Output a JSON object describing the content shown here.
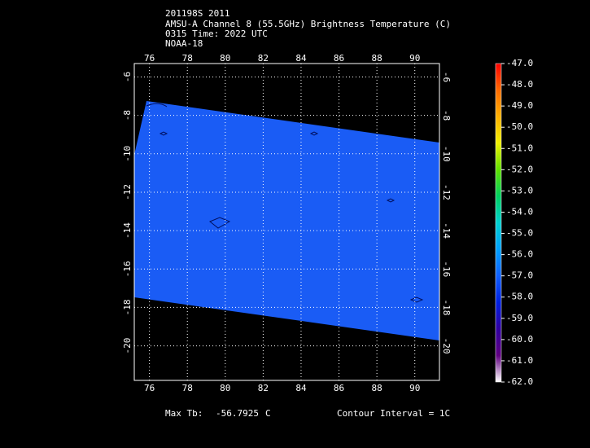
{
  "header": {
    "lines": [
      "201198S 2011",
      "AMSU-A Channel 8 (55.5GHz) Brightness Temperature (C)",
      "0315 Time: 2022 UTC",
      "NOAA-18"
    ]
  },
  "chart_data": {
    "type": "map",
    "xlim": [
      75.2,
      91.3
    ],
    "xticks": [
      76,
      78,
      80,
      82,
      84,
      86,
      88,
      90
    ],
    "ylim": [
      -21.8,
      -5.3
    ],
    "yticks": [
      -6,
      -8,
      -10,
      -12,
      -14,
      -16,
      -18,
      -20
    ],
    "grid": true,
    "colorbar": {
      "lim": [
        -62,
        -47
      ],
      "ticks": [
        {
          "value": -47,
          "label": "-47.0"
        },
        {
          "value": -48,
          "label": "-48.0"
        },
        {
          "value": -49,
          "label": "-49.0"
        },
        {
          "value": -50,
          "label": "-50.0"
        },
        {
          "value": -51,
          "label": "-51.0"
        },
        {
          "value": -52,
          "label": "-52.0"
        },
        {
          "value": -53,
          "label": "-53.0"
        },
        {
          "value": -54,
          "label": "-54.0"
        },
        {
          "value": -55,
          "label": "-55.0"
        },
        {
          "value": -56,
          "label": "-56.0"
        },
        {
          "value": -57,
          "label": "-57.0"
        },
        {
          "value": -58,
          "label": "-58.0"
        },
        {
          "value": -59,
          "label": "-59.0"
        },
        {
          "value": -60,
          "label": "-60.0"
        },
        {
          "value": -61,
          "label": "-61.0"
        },
        {
          "value": -62,
          "label": "-62.0"
        }
      ],
      "colors": [
        "#ff0000",
        "#ff6a00",
        "#ffb000",
        "#f0f000",
        "#60e000",
        "#00d060",
        "#00d0d0",
        "#00a0ff",
        "#1060ff",
        "#0020e0",
        "#3000a0",
        "#600080",
        "#ffffff"
      ]
    }
  },
  "footer": {
    "max_label": "Max Tb:",
    "max_value": -56.7925,
    "unit": "C",
    "contour": "Contour Interval = 1C"
  }
}
